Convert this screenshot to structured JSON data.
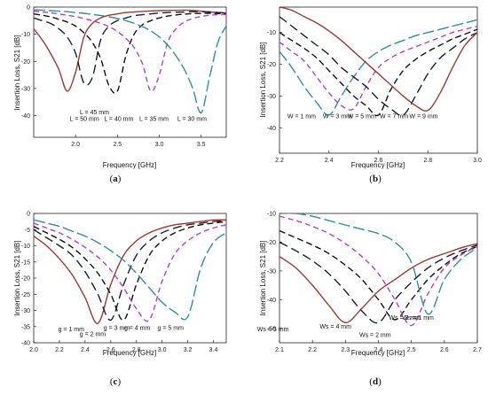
{
  "chart_data": [
    {
      "type": "line",
      "panel_label": "a",
      "xlabel": "Frequency [GHz]",
      "ylabel": "Insertion Loss, S21 [dB]",
      "xlim": [
        1.5,
        3.8
      ],
      "ylim": [
        -48,
        0
      ],
      "xticks": [
        2.0,
        2.5,
        3.0,
        3.5
      ],
      "xtick_labels": [
        "2.0",
        "2.5",
        "3.0",
        "3.5"
      ],
      "yticks": [
        0,
        -10,
        -20,
        -30,
        -40
      ],
      "ytick_labels": [
        "0",
        "-10",
        "-20",
        "-30",
        "-40"
      ],
      "x": [
        1.5,
        1.6,
        1.7,
        1.8,
        1.9,
        2.0,
        2.1,
        2.2,
        2.3,
        2.4,
        2.5,
        2.6,
        2.7,
        2.8,
        2.9,
        3.0,
        3.1,
        3.2,
        3.3,
        3.4,
        3.5,
        3.6,
        3.7,
        3.8
      ],
      "series": [
        {
          "name": "L = 50 mm",
          "color": "#a0392f",
          "dash": "",
          "values": [
            -8,
            -12,
            -17,
            -23,
            -31,
            -24,
            -11,
            -6,
            -4,
            -3,
            -2.5,
            -2,
            -1.8,
            -1.6,
            -1.4,
            -1.3,
            -1.2,
            -1.2,
            -1.1,
            -1.2,
            -1.5,
            -1.8,
            -2.0,
            -2.2
          ]
        },
        {
          "name": "L = 45 mm",
          "color": "#141f3a",
          "dash": "10,5",
          "values": [
            -4,
            -5,
            -6,
            -8,
            -11,
            -17,
            -28,
            -26,
            -12,
            -7,
            -5,
            -4,
            -3.2,
            -2.8,
            -2.5,
            -2.2,
            -2.0,
            -1.9,
            -1.8,
            -1.7,
            -1.7,
            -1.8,
            -2.0,
            -2.2
          ]
        },
        {
          "name": "L = 40 mm",
          "color": "#111111",
          "dash": "7,4",
          "values": [
            -2.5,
            -3,
            -3.6,
            -4.5,
            -5.5,
            -7,
            -9.5,
            -13,
            -19,
            -29,
            -31,
            -18,
            -10,
            -6.5,
            -5,
            -4,
            -3.3,
            -2.9,
            -2.6,
            -2.4,
            -2.3,
            -2.3,
            -2.4,
            -2.5
          ]
        },
        {
          "name": "L = 35 mm",
          "color": "#b33fc9",
          "dash": "6,4",
          "values": [
            -1.5,
            -1.8,
            -2.1,
            -2.5,
            -3.0,
            -3.5,
            -4.2,
            -5.0,
            -6.0,
            -7.2,
            -9.0,
            -11.5,
            -15,
            -21,
            -31,
            -25,
            -13,
            -8,
            -5.5,
            -4.2,
            -3.5,
            -3.0,
            -2.8,
            -2.7
          ]
        },
        {
          "name": "L = 30 mm",
          "color": "#2f8f98",
          "dash": "13,4",
          "values": [
            -1.0,
            -1.1,
            -1.3,
            -1.5,
            -1.7,
            -2.0,
            -2.3,
            -2.7,
            -3.1,
            -3.6,
            -4.2,
            -5.0,
            -6.0,
            -7.2,
            -8.8,
            -11,
            -14,
            -18,
            -23,
            -30,
            -39,
            -26,
            -13,
            -7
          ]
        }
      ],
      "annotations": [
        "L = 50 mm",
        "L = 45 mm",
        "L = 40 mm",
        "L = 35 mm",
        "L = 30 mm"
      ]
    },
    {
      "type": "line",
      "panel_label": "b",
      "xlabel": "Frequency [GHz]",
      "ylabel": "Insertion Loss, S21 [dB]",
      "xlim": [
        2.2,
        3.0
      ],
      "ylim": [
        -48,
        -2
      ],
      "xticks": [
        2.2,
        2.4,
        2.6,
        2.8,
        3.0
      ],
      "xtick_labels": [
        "2.2",
        "2.4",
        "2.6",
        "2.8",
        "3.0"
      ],
      "yticks": [
        -10,
        -20,
        -30,
        -40
      ],
      "ytick_labels": [
        "-10",
        "-20",
        "-30",
        "-40"
      ],
      "x": [
        2.2,
        2.25,
        2.3,
        2.35,
        2.4,
        2.45,
        2.5,
        2.55,
        2.6,
        2.65,
        2.7,
        2.75,
        2.8,
        2.85,
        2.9,
        2.95,
        3.0
      ],
      "series": [
        {
          "name": "W = 1 mm",
          "color": "#2f8f98",
          "dash": "13,4",
          "values": [
            -16,
            -21,
            -27,
            -32,
            -36,
            -30,
            -24,
            -19,
            -16,
            -14,
            -12.5,
            -11,
            -10,
            -9,
            -8,
            -7,
            -6
          ]
        },
        {
          "name": "W = 3 mm",
          "color": "#b33fc9",
          "dash": "6,4",
          "values": [
            -13,
            -16,
            -19,
            -24,
            -29,
            -33,
            -34,
            -27,
            -21,
            -18,
            -16,
            -14.5,
            -13,
            -11.5,
            -10,
            -9,
            -8
          ]
        },
        {
          "name": "W = 5 mm",
          "color": "#111111",
          "dash": "7,4",
          "values": [
            -10,
            -12.5,
            -15,
            -18,
            -22,
            -26,
            -30,
            -33,
            -36,
            -28,
            -22,
            -18.5,
            -16,
            -14,
            -12,
            -10.5,
            -9
          ]
        },
        {
          "name": "W = 7 mm",
          "color": "#141f3a",
          "dash": "10,5",
          "values": [
            -5,
            -8,
            -11,
            -14,
            -17,
            -21,
            -24,
            -27,
            -31,
            -34,
            -36,
            -30,
            -23,
            -18,
            -15,
            -12,
            -10
          ]
        },
        {
          "name": "W = 9 mm",
          "color": "#a0392f",
          "dash": "",
          "values": [
            -2,
            -3,
            -5,
            -7,
            -9.5,
            -12.5,
            -16,
            -19.5,
            -23,
            -26.5,
            -30,
            -33,
            -34.5,
            -29,
            -21,
            -14,
            -10
          ]
        }
      ],
      "annotations": [
        "W = 1 mm",
        "W = 3 mm",
        "W = 5 mm",
        "W = 7 mm",
        "W = 9 mm"
      ]
    },
    {
      "type": "line",
      "panel_label": "c",
      "xlabel": "Frequency [GHz]",
      "ylabel": "Insertion Loss, S21 [dB]",
      "xlim": [
        2.0,
        3.5
      ],
      "ylim": [
        -40,
        0
      ],
      "xticks": [
        2.0,
        2.2,
        2.4,
        2.6,
        2.8,
        3.0,
        3.2,
        3.4
      ],
      "xtick_labels": [
        "2.0",
        "2.2",
        "2.4",
        "2.6",
        "2.8",
        "3.0",
        "3.2",
        "3.4"
      ],
      "yticks": [
        0,
        -5,
        -10,
        -15,
        -20,
        -25,
        -30,
        -35,
        -40
      ],
      "ytick_labels": [
        "0",
        "-5",
        "-10",
        "-15",
        "-20",
        "-25",
        "-30",
        "-35",
        "-40"
      ],
      "x": [
        2.0,
        2.1,
        2.2,
        2.3,
        2.4,
        2.5,
        2.6,
        2.7,
        2.8,
        2.9,
        3.0,
        3.1,
        3.2,
        3.3,
        3.4,
        3.5
      ],
      "series": [
        {
          "name": "g = 1 mm",
          "color": "#a0392f",
          "dash": "",
          "values": [
            -7,
            -10,
            -14,
            -19,
            -26,
            -34,
            -22,
            -13,
            -8.5,
            -6,
            -4.5,
            -3.5,
            -3,
            -2.5,
            -2,
            -2
          ]
        },
        {
          "name": "g = 2 mm",
          "color": "#141f3a",
          "dash": "10,5",
          "values": [
            -5,
            -7.5,
            -10,
            -13,
            -18,
            -25,
            -33,
            -22,
            -13,
            -8.5,
            -6,
            -4.5,
            -3.5,
            -3,
            -2.5,
            -2.2
          ]
        },
        {
          "name": "g = 3 mm",
          "color": "#111111",
          "dash": "7,4",
          "values": [
            -4,
            -6,
            -8,
            -10.5,
            -14,
            -18.5,
            -25,
            -33,
            -22,
            -13,
            -8.5,
            -6,
            -4.5,
            -3.5,
            -3,
            -2.5
          ]
        },
        {
          "name": "g = 4 mm",
          "color": "#b33fc9",
          "dash": "6,4",
          "values": [
            -3,
            -4.5,
            -6,
            -8,
            -10.5,
            -13.5,
            -17.5,
            -23,
            -29.5,
            -33,
            -21,
            -12.5,
            -8.5,
            -6,
            -4.5,
            -3.5
          ]
        },
        {
          "name": "g = 5 mm",
          "color": "#2f8f98",
          "dash": "13,4",
          "values": [
            -2,
            -3,
            -4,
            -5.5,
            -7,
            -9,
            -11.5,
            -14.5,
            -18.5,
            -23,
            -27.5,
            -30.5,
            -32,
            -17,
            -9,
            -6
          ]
        }
      ],
      "annotations": [
        "g = 1 mm",
        "g = 2 mm",
        "g = 3 mm",
        "g = 4 mm",
        "g = 5 mm"
      ]
    },
    {
      "type": "line",
      "panel_label": "d",
      "xlabel": "Frequency [GHz]",
      "ylabel": "Insertion Loss, S21 [dB]",
      "xlim": [
        2.1,
        2.7
      ],
      "ylim": [
        -55,
        -10
      ],
      "xticks": [
        2.1,
        2.2,
        2.3,
        2.4,
        2.5,
        2.6,
        2.7
      ],
      "xtick_labels": [
        "2.1",
        "2.2",
        "2.3",
        "2.4",
        "2.5",
        "2.6",
        "2.7"
      ],
      "yticks": [
        -10,
        -20,
        -30,
        -40,
        -50
      ],
      "ytick_labels": [
        "-10",
        "-20",
        "-30",
        "-40",
        "-50"
      ],
      "x": [
        2.1,
        2.15,
        2.2,
        2.25,
        2.3,
        2.35,
        2.4,
        2.45,
        2.5,
        2.55,
        2.6,
        2.65,
        2.7
      ],
      "series": [
        {
          "name": "Ws = 5 mm",
          "color": "#a0392f",
          "dash": "",
          "values": [
            -25,
            -29,
            -35,
            -42,
            -48,
            -43,
            -37,
            -33,
            -29,
            -26,
            -24,
            -22,
            -20.5
          ]
        },
        {
          "name": "Ws = 4 mm",
          "color": "#141f3a",
          "dash": "10,5",
          "values": [
            -20,
            -23,
            -26.5,
            -31,
            -37,
            -44,
            -48,
            -40,
            -34,
            -29,
            -25.5,
            -23,
            -21
          ]
        },
        {
          "name": "Ws = 3 mm",
          "color": "#111111",
          "dash": "7,4",
          "values": [
            -16,
            -18.5,
            -21,
            -24,
            -28,
            -33,
            -40,
            -47,
            -40,
            -33,
            -28,
            -24,
            -21.5
          ]
        },
        {
          "name": "Ws = 2 mm",
          "color": "#b33fc9",
          "dash": "6,4",
          "values": [
            -11,
            -12.5,
            -14.5,
            -17,
            -20.5,
            -25,
            -31,
            -40,
            -49,
            -38,
            -29,
            -24.5,
            -21.5
          ]
        },
        {
          "name": "Ws = 1 mm",
          "color": "#2f8f98",
          "dash": "13,4",
          "values": [
            -10,
            -10,
            -11,
            -12.5,
            -14,
            -15.5,
            -17,
            -20,
            -27,
            -45,
            -33,
            -26,
            -22
          ]
        }
      ],
      "annotations": [
        "Ws = 5 mm",
        "Ws = 4 mm",
        "Ws = 3 mm",
        "Ws = 2 mm",
        "Ws = 1 mm"
      ]
    }
  ]
}
